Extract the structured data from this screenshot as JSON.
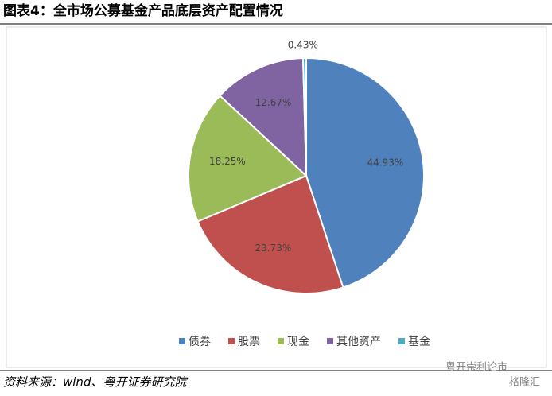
{
  "chart_data": {
    "type": "pie",
    "title": "图表4：全市场公募基金产品底层资产配置情况",
    "categories": [
      "债券",
      "股票",
      "现金",
      "其他资产",
      "基金"
    ],
    "values": [
      44.93,
      23.73,
      18.25,
      12.67,
      0.43
    ],
    "value_labels": [
      "44.93%",
      "23.73%",
      "18.25%",
      "12.67%",
      "0.43%"
    ],
    "colors": [
      "#4f81bd",
      "#c0504d",
      "#9bbb59",
      "#8064a2",
      "#4bacc6"
    ],
    "legend": "bottom",
    "source": "资料来源：wind、粤开证券研究院",
    "watermark": [
      "粤开崇利论市",
      "格隆汇"
    ]
  }
}
